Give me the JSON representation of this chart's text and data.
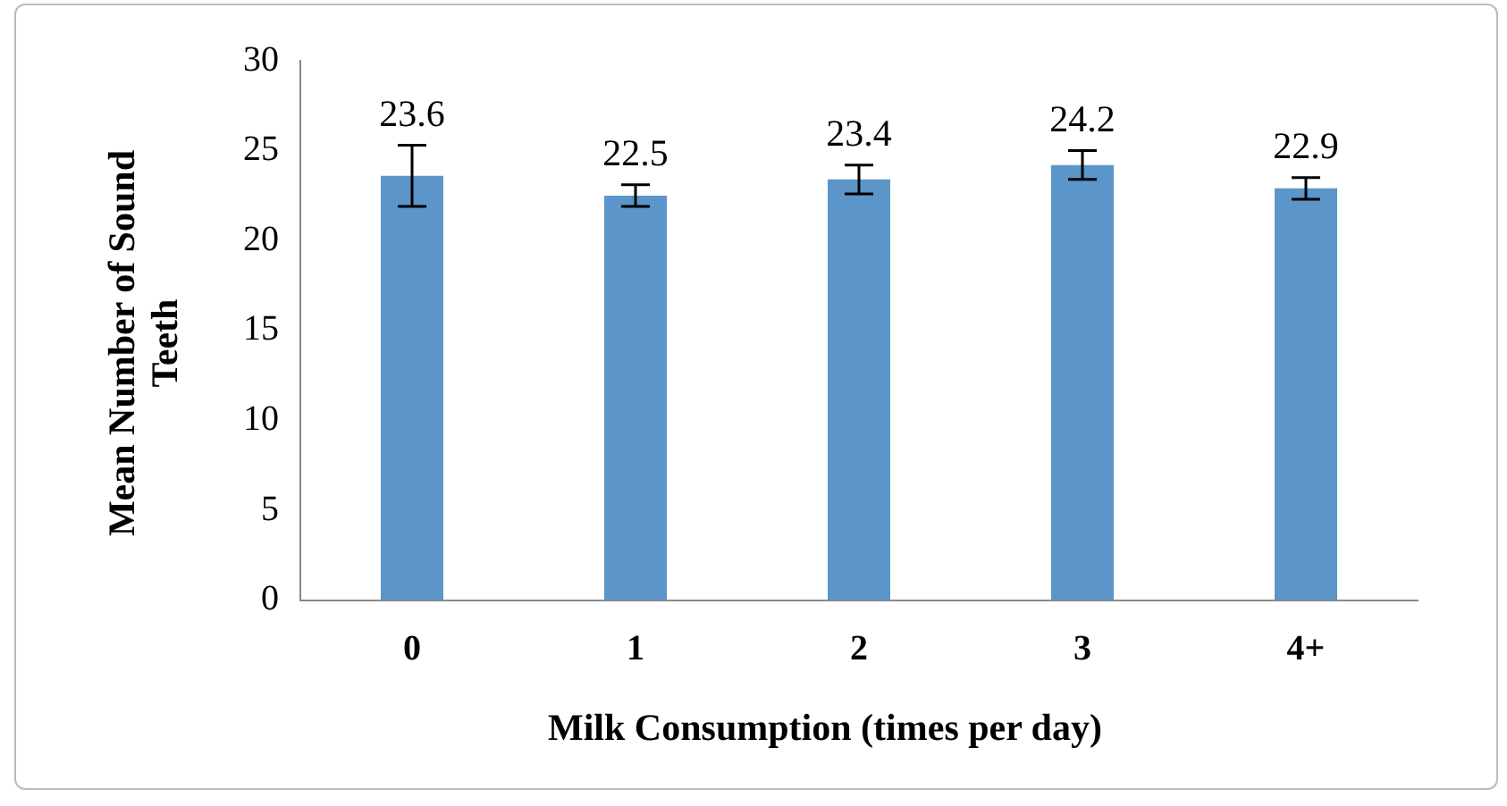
{
  "chart_data": {
    "type": "bar",
    "xlabel": "Milk Consumption (times per day)",
    "ylabel": "Mean Number of Sound Teeth",
    "categories": [
      "0",
      "1",
      "2",
      "3",
      "4+"
    ],
    "values": [
      23.6,
      22.5,
      23.4,
      24.2,
      22.9
    ],
    "errors": [
      1.7,
      0.6,
      0.8,
      0.8,
      0.6
    ],
    "color": "#5b95c9",
    "ylim": [
      0,
      30
    ],
    "yticks": [
      0,
      5,
      10,
      15,
      20,
      25,
      30
    ],
    "grid": false,
    "legend": false,
    "data_labels": true
  }
}
